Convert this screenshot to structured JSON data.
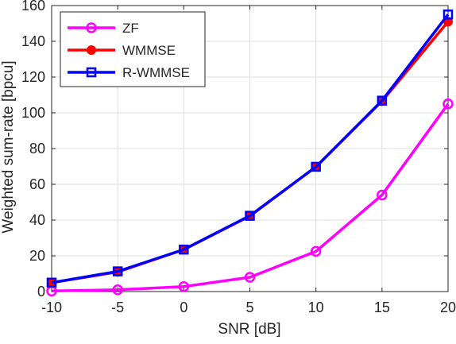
{
  "chart_data": {
    "type": "line",
    "title": "",
    "xlabel": "SNR [dB]",
    "ylabel": "Weighted sum-rate [bpcu]",
    "x": [
      -10,
      -5,
      0,
      5,
      10,
      15,
      20
    ],
    "xlim": [
      -10,
      20
    ],
    "ylim": [
      0,
      160
    ],
    "xticks": [
      -10,
      -5,
      0,
      5,
      10,
      15,
      20
    ],
    "yticks": [
      0,
      20,
      40,
      60,
      80,
      100,
      120,
      140,
      160
    ],
    "grid": true,
    "legend_position": "top-left",
    "series": [
      {
        "name": "ZF",
        "color": "#ff00ff",
        "marker": "circle",
        "values": [
          0.3,
          1.0,
          2.8,
          8.0,
          22.5,
          54.0,
          105.0
        ]
      },
      {
        "name": "WMMSE",
        "color": "#ff0000",
        "marker": "filled-circle",
        "values": [
          5.0,
          11.0,
          23.5,
          42.2,
          69.8,
          106.5,
          151.0
        ]
      },
      {
        "name": "R-WMMSE",
        "color": "#0000ff",
        "marker": "square",
        "values": [
          5.0,
          11.3,
          23.5,
          42.4,
          69.8,
          106.8,
          155.0
        ]
      }
    ]
  }
}
